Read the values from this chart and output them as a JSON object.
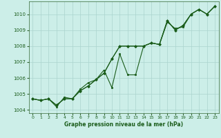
{
  "title": "Graphe pression niveau de la mer (hPa)",
  "bg_color": "#cceee8",
  "grid_color": "#aad4ce",
  "line_color": "#1a5c1a",
  "xlim": [
    -0.5,
    23.5
  ],
  "ylim": [
    1003.8,
    1010.8
  ],
  "xticks": [
    0,
    1,
    2,
    3,
    4,
    5,
    6,
    7,
    8,
    9,
    10,
    11,
    12,
    13,
    14,
    15,
    16,
    17,
    18,
    19,
    20,
    21,
    22,
    23
  ],
  "yticks": [
    1004,
    1005,
    1006,
    1007,
    1008,
    1009,
    1010
  ],
  "series": [
    [
      1004.7,
      1004.6,
      1004.7,
      1004.3,
      1004.7,
      1004.7,
      1005.2,
      1005.5,
      1005.9,
      1006.3,
      1007.2,
      1008.0,
      1008.0,
      1008.0,
      1008.0,
      1008.2,
      1008.1,
      1009.6,
      1009.0,
      1009.3,
      1010.0,
      1010.3,
      1010.0,
      1010.5
    ],
    [
      1004.7,
      1004.6,
      1004.7,
      1004.3,
      1004.7,
      1004.7,
      1005.2,
      1005.5,
      1005.9,
      1006.3,
      1007.2,
      1008.0,
      1008.0,
      1008.0,
      1008.0,
      1008.2,
      1008.1,
      1009.6,
      1009.0,
      1009.3,
      1010.0,
      1010.3,
      1010.0,
      1010.5
    ],
    [
      1004.7,
      1004.6,
      1004.7,
      1004.2,
      1004.8,
      1004.7,
      1005.3,
      1005.7,
      1005.9,
      1006.5,
      1005.4,
      1007.5,
      1006.2,
      1006.2,
      1008.0,
      1008.2,
      1008.1,
      1009.5,
      1009.1,
      1009.2,
      1010.0,
      1010.3,
      1010.0,
      1010.5
    ]
  ],
  "markers": [
    "D",
    "^",
    "s"
  ],
  "linewidths": [
    0.8,
    0.8,
    0.8
  ]
}
